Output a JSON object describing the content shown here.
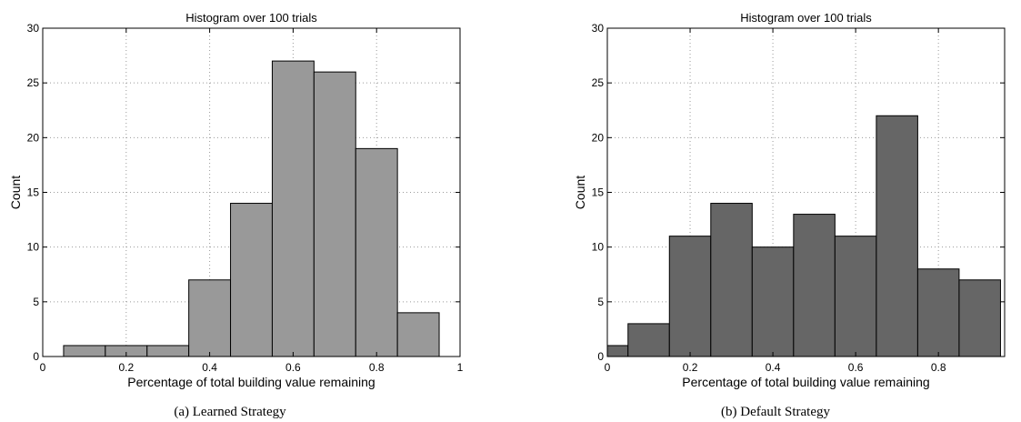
{
  "chart_data": [
    {
      "type": "bar",
      "title": "Histogram over 100 trials",
      "xlabel": "Percentage of total building value remaining",
      "ylabel": "Count",
      "caption": "(a) Learned Strategy",
      "xlim": [
        0,
        1
      ],
      "ylim": [
        0,
        30
      ],
      "xticks": [
        0,
        0.2,
        0.4,
        0.6,
        0.8,
        1
      ],
      "xtick_labels": [
        "0",
        "0.2",
        "0.4",
        "0.6",
        "0.8",
        "1"
      ],
      "yticks": [
        0,
        5,
        10,
        15,
        20,
        25,
        30
      ],
      "ytick_labels": [
        "0",
        "5",
        "10",
        "15",
        "20",
        "25",
        "30"
      ],
      "grid": true,
      "bar_color": "#999999",
      "bin_width": 0.1,
      "bin_centers": [
        0.1,
        0.2,
        0.3,
        0.4,
        0.5,
        0.6,
        0.7,
        0.8,
        0.9
      ],
      "values": [
        1,
        1,
        1,
        7,
        14,
        27,
        26,
        19,
        4
      ]
    },
    {
      "type": "bar",
      "title": "Histogram over 100 trials",
      "xlabel": "Percentage of total building value remaining",
      "ylabel": "Count",
      "caption": "(b) Default Strategy",
      "xlim": [
        0,
        0.96
      ],
      "ylim": [
        0,
        30
      ],
      "xticks": [
        0,
        0.2,
        0.4,
        0.6,
        0.8
      ],
      "xtick_labels": [
        "0",
        "0.2",
        "0.4",
        "0.6",
        "0.8"
      ],
      "yticks": [
        0,
        5,
        10,
        15,
        20,
        25,
        30
      ],
      "ytick_labels": [
        "0",
        "5",
        "10",
        "15",
        "20",
        "25",
        "30"
      ],
      "grid": true,
      "bar_color": "#666666",
      "bin_width": 0.1,
      "bin_centers": [
        0,
        0.1,
        0.2,
        0.3,
        0.4,
        0.5,
        0.6,
        0.7,
        0.8,
        0.9
      ],
      "values": [
        1,
        3,
        11,
        14,
        10,
        13,
        11,
        22,
        8,
        7
      ]
    }
  ]
}
